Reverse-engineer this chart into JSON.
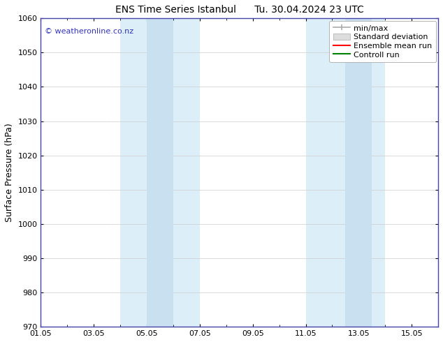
{
  "title": "ENS Time Series Istanbul",
  "title2": "Tu. 30.04.2024 23 UTC",
  "ylabel": "Surface Pressure (hPa)",
  "ylim": [
    970,
    1060
  ],
  "yticks": [
    970,
    980,
    990,
    1000,
    1010,
    1020,
    1030,
    1040,
    1050,
    1060
  ],
  "xlim": [
    0,
    15
  ],
  "xtick_labels": [
    "01.05",
    "03.05",
    "05.05",
    "07.05",
    "09.05",
    "11.05",
    "13.05",
    "15.05"
  ],
  "xtick_positions": [
    0,
    2,
    4,
    6,
    8,
    10,
    12,
    14
  ],
  "shaded_outer": [
    {
      "x_start": 3.0,
      "x_end": 6.0
    },
    {
      "x_start": 10.0,
      "x_end": 13.0
    }
  ],
  "shaded_inner": [
    {
      "x_start": 4.0,
      "x_end": 5.0
    },
    {
      "x_start": 11.5,
      "x_end": 12.5
    }
  ],
  "shaded_outer_color": "#dceef8",
  "shaded_inner_color": "#c8e0f0",
  "watermark_text": "© weatheronline.co.nz",
  "watermark_color": "#3333bb",
  "bg_color": "#ffffff",
  "plot_bg_color": "#ffffff",
  "border_color": "#4444aa",
  "tick_color": "#000000",
  "grid_color": "#cccccc",
  "legend_entries": [
    "min/max",
    "Standard deviation",
    "Ensemble mean run",
    "Controll run"
  ],
  "legend_line_colors": [
    "#aaaaaa",
    "#cccccc",
    "#ff0000",
    "#008000"
  ],
  "title_fontsize": 10,
  "ylabel_fontsize": 9,
  "tick_fontsize": 8,
  "legend_fontsize": 8
}
